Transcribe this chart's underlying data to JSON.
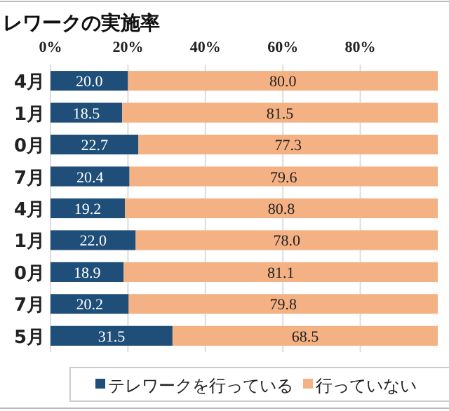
{
  "chart_data": {
    "type": "bar",
    "orientation": "horizontal",
    "stacked": true,
    "title": "レワークの実施率",
    "categories": [
      "4月",
      "1月",
      "0月",
      "7月",
      "4月",
      "1月",
      "0月",
      "7月",
      "5月"
    ],
    "series": [
      {
        "name": "テレワークを行っている",
        "color": "#1f4e79",
        "values": [
          20.0,
          18.5,
          22.7,
          20.4,
          19.2,
          22.0,
          18.9,
          20.2,
          31.5
        ],
        "value_labels": [
          "20.0",
          "18.5",
          "22.7",
          "20.4",
          "19.2",
          "22.0",
          "18.9",
          "20.2",
          "31.5"
        ]
      },
      {
        "name": "行っていない",
        "color": "#f4b183",
        "values": [
          80.0,
          81.5,
          77.3,
          79.6,
          80.8,
          78.0,
          81.1,
          79.8,
          68.5
        ],
        "value_labels": [
          "80.0",
          "81.5",
          "77.3",
          "79.6",
          "80.8",
          "78.0",
          "81.1",
          "79.8",
          "68.5"
        ]
      }
    ],
    "xlim": [
      0,
      100
    ],
    "xticks": [
      {
        "value": 0,
        "label": "0%"
      },
      {
        "value": 20,
        "label": "20%"
      },
      {
        "value": 40,
        "label": "40%"
      },
      {
        "value": 60,
        "label": "60%"
      },
      {
        "value": 80,
        "label": "80%"
      }
    ],
    "grid": "x",
    "legend": "bottom"
  }
}
